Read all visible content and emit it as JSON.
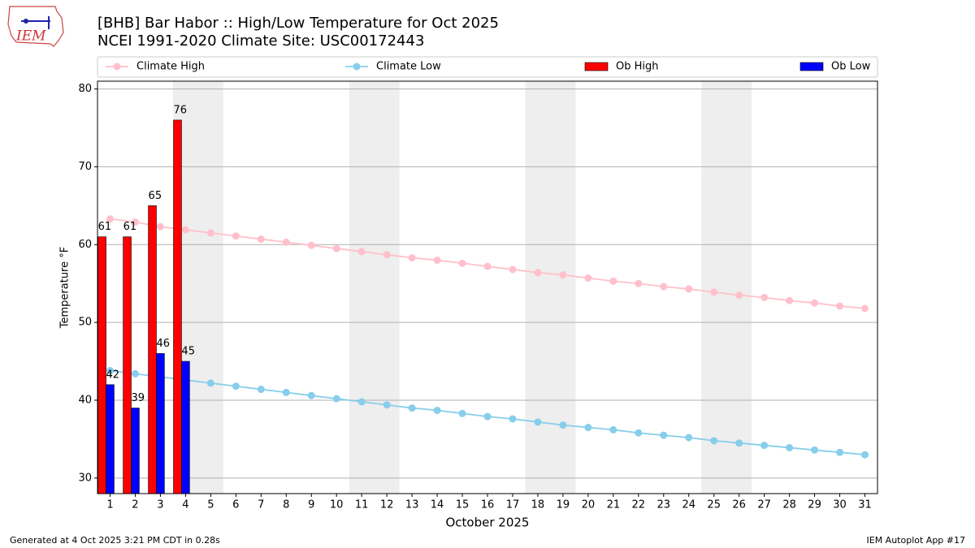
{
  "logo_text": "IEM",
  "chart_data": {
    "type": "bar",
    "title": "[BHB] Bar Habor :: High/Low Temperature for Oct 2025",
    "subtitle": "NCEI 1991-2020 Climate Site: USC00172443",
    "xlabel": "October 2025",
    "ylabel": "Temperature °F",
    "categories": [
      "1",
      "2",
      "3",
      "4",
      "5",
      "6",
      "7",
      "8",
      "9",
      "10",
      "11",
      "12",
      "13",
      "14",
      "15",
      "16",
      "17",
      "18",
      "19",
      "20",
      "21",
      "22",
      "23",
      "24",
      "25",
      "26",
      "27",
      "28",
      "29",
      "30",
      "31"
    ],
    "xlim": [
      0.5,
      31.5
    ],
    "ylim": [
      28,
      81
    ],
    "yticks": [
      30,
      40,
      50,
      60,
      70,
      80
    ],
    "grid": true,
    "shaded_spans": [
      [
        3.5,
        5.5
      ],
      [
        10.5,
        12.5
      ],
      [
        17.5,
        19.5
      ],
      [
        24.5,
        26.5
      ]
    ],
    "shade_color": "#eeeeee",
    "legend": "top",
    "series": [
      {
        "name": "Climate High",
        "style": "line",
        "color": "#ffc0cb",
        "values": [
          63.3,
          62.9,
          62.3,
          61.9,
          61.5,
          61.1,
          60.7,
          60.3,
          59.9,
          59.5,
          59.1,
          58.7,
          58.3,
          58.0,
          57.6,
          57.2,
          56.8,
          56.4,
          56.1,
          55.7,
          55.3,
          55.0,
          54.6,
          54.3,
          53.9,
          53.5,
          53.2,
          52.8,
          52.5,
          52.1,
          51.8
        ]
      },
      {
        "name": "Climate Low",
        "style": "line",
        "color": "#87ceeb",
        "values": [
          43.8,
          43.4,
          43.0,
          42.6,
          42.2,
          41.8,
          41.4,
          41.0,
          40.6,
          40.2,
          39.8,
          39.4,
          39.0,
          38.7,
          38.3,
          37.9,
          37.6,
          37.2,
          36.8,
          36.5,
          36.2,
          35.8,
          35.5,
          35.2,
          34.8,
          34.5,
          34.2,
          33.9,
          33.6,
          33.3,
          33.0
        ]
      },
      {
        "name": "Ob High",
        "style": "bar",
        "color": "#ff0000",
        "values": [
          61,
          61,
          65,
          76,
          null,
          null,
          null,
          null,
          null,
          null,
          null,
          null,
          null,
          null,
          null,
          null,
          null,
          null,
          null,
          null,
          null,
          null,
          null,
          null,
          null,
          null,
          null,
          null,
          null,
          null,
          null
        ]
      },
      {
        "name": "Ob Low",
        "style": "bar",
        "color": "#0000ff",
        "values": [
          42,
          39,
          46,
          45,
          null,
          null,
          null,
          null,
          null,
          null,
          null,
          null,
          null,
          null,
          null,
          null,
          null,
          null,
          null,
          null,
          null,
          null,
          null,
          null,
          null,
          null,
          null,
          null,
          null,
          null,
          null
        ]
      }
    ],
    "footer_left": "Generated at 4 Oct 2025 3:21 PM CDT in 0.28s",
    "footer_right": "IEM Autoplot App #17"
  }
}
